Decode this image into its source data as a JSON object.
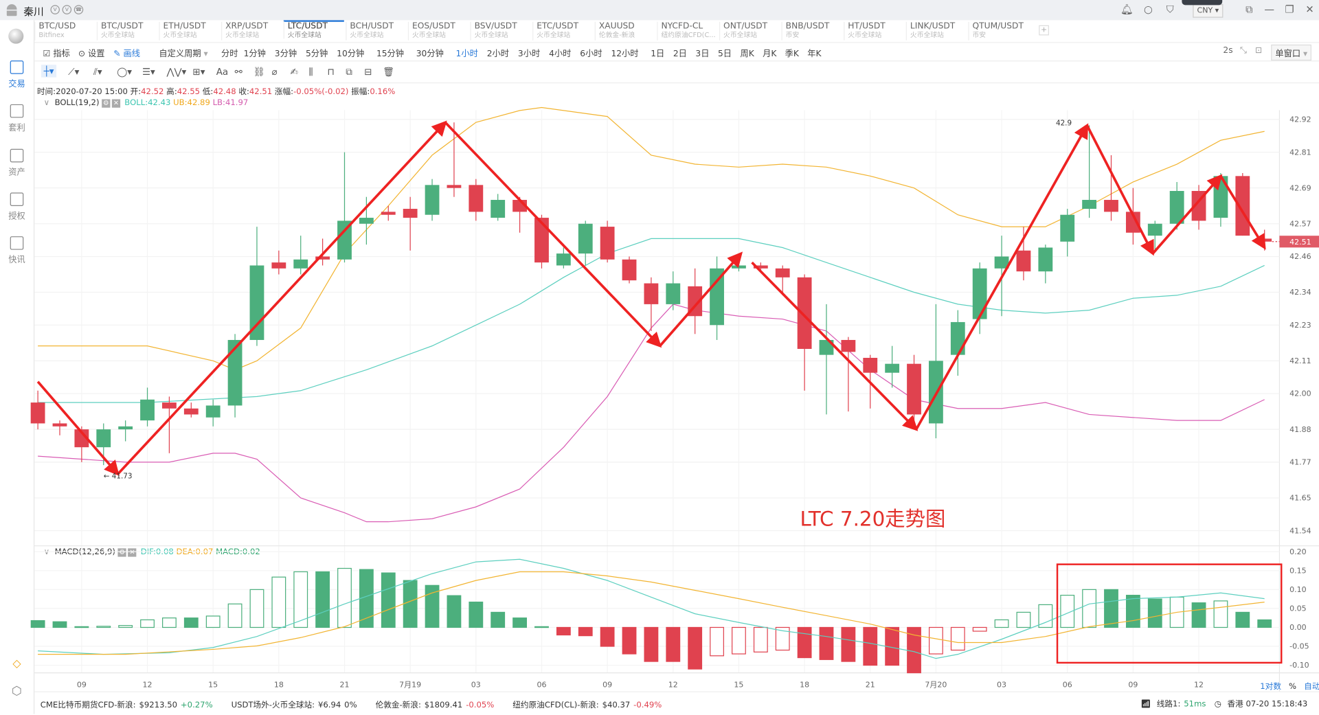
{
  "titlebar": {
    "user": "秦川",
    "currency": "CNY"
  },
  "sidebar": {
    "items": [
      {
        "label": "交易",
        "active": true
      },
      {
        "label": "套利"
      },
      {
        "label": "资产"
      },
      {
        "label": "授权"
      },
      {
        "label": "快讯"
      }
    ]
  },
  "tabs": [
    {
      "name": "BTC/USD",
      "sub": "Bitfinex"
    },
    {
      "name": "BTC/USDT",
      "sub": "火币全球站"
    },
    {
      "name": "ETH/USDT",
      "sub": "火币全球站"
    },
    {
      "name": "XRP/USDT",
      "sub": "火币全球站"
    },
    {
      "name": "LTC/USDT",
      "sub": "火币全球站",
      "active": true
    },
    {
      "name": "BCH/USDT",
      "sub": "火币全球站"
    },
    {
      "name": "EOS/USDT",
      "sub": "火币全球站"
    },
    {
      "name": "BSV/USDT",
      "sub": "火币全球站"
    },
    {
      "name": "ETC/USDT",
      "sub": "火币全球站"
    },
    {
      "name": "XAUUSD",
      "sub": "伦敦金-新浪"
    },
    {
      "name": "NYCFD-CL",
      "sub": "纽约原油CFD(C..."
    },
    {
      "name": "ONT/USDT",
      "sub": "火币全球站"
    },
    {
      "name": "BNB/USDT",
      "sub": "币安"
    },
    {
      "name": "HT/USDT",
      "sub": "火币全球站"
    },
    {
      "name": "LINK/USDT",
      "sub": "火币全球站"
    },
    {
      "name": "QTUM/USDT",
      "sub": "币安"
    }
  ],
  "toolbar": {
    "indicator": "指标",
    "settings": "设置",
    "draw": "画线",
    "custom_period": "自定义周期",
    "periods": [
      "分时",
      "1分钟",
      "3分钟",
      "5分钟",
      "10分钟",
      "15分钟",
      "30分钟",
      "1小时",
      "2小时",
      "3小时",
      "4小时",
      "6小时",
      "12小时",
      "1日",
      "2日",
      "3日",
      "5日",
      "周K",
      "月K",
      "季K",
      "年K"
    ],
    "active_period": "1小时",
    "refresh": "2s",
    "window_mode": "单窗口"
  },
  "info": {
    "time_label": "时间:",
    "time": "2020-07-20 15:00",
    "open_label": "开:",
    "open": "42.52",
    "high_label": "高:",
    "high": "42.55",
    "low_label": "低:",
    "low": "42.48",
    "close_label": "收:",
    "close": "42.51",
    "change_label": "涨幅:",
    "change": "-0.05%(-0.02)",
    "amp_label": "振幅:",
    "amp": "0.16%"
  },
  "boll": {
    "name": "BOLL(19,2)",
    "mid": "BOLL:42.43",
    "ub": "UB:42.89",
    "lb": "LB:41.97"
  },
  "macd": {
    "name": "MACD(12,26,9)",
    "dif": "DIF:0.08",
    "dea": "DEA:0.07",
    "macd": "MACD:0.02"
  },
  "axis_options": {
    "log": "1对数",
    "pct": "%",
    "auto": "自动"
  },
  "status": [
    {
      "label": "CME比特币期货CFD-新浪:",
      "value": "$9213.50",
      "change": "+0.27%",
      "dir": "up"
    },
    {
      "label": "USDT场外-火币全球站:",
      "value": "¥6.94",
      "change": "0%",
      "dir": "flat"
    },
    {
      "label": "伦敦金-新浪:",
      "value": "$1809.41",
      "change": "-0.05%",
      "dir": "down"
    },
    {
      "label": "纽约原油CFD(CL)-新浪:",
      "value": "$40.37",
      "change": "-0.49%",
      "dir": "down"
    }
  ],
  "connection": {
    "line": "线路1:",
    "latency": "51ms",
    "clock": "香港 07-20 15:18:43"
  },
  "colors": {
    "up": "#4caf7d",
    "down": "#e0424f",
    "mid": "#5ccfbf",
    "ub": "#f2b431",
    "lb": "#d95cb4",
    "annot": "#ee2222",
    "accent": "#2a7ad8"
  },
  "chart_data": {
    "type": "candlestick",
    "title": "LTC 7.20走势图",
    "price_ticks": [
      "42.92",
      "42.81",
      "42.69",
      "42.57",
      "42.46",
      "42.34",
      "42.23",
      "42.11",
      "42.00",
      "41.88",
      "41.77",
      "41.65",
      "41.54"
    ],
    "price_range": [
      41.54,
      42.92
    ],
    "last_price": "42.51",
    "time_ticks": [
      {
        "i": 2,
        "label": "09"
      },
      {
        "i": 5,
        "label": "12"
      },
      {
        "i": 8,
        "label": "15"
      },
      {
        "i": 11,
        "label": "18"
      },
      {
        "i": 14,
        "label": "21"
      },
      {
        "i": 17,
        "label": "7月19"
      },
      {
        "i": 20,
        "label": "03"
      },
      {
        "i": 23,
        "label": "06"
      },
      {
        "i": 26,
        "label": "09"
      },
      {
        "i": 29,
        "label": "12"
      },
      {
        "i": 32,
        "label": "15"
      },
      {
        "i": 35,
        "label": "18"
      },
      {
        "i": 38,
        "label": "21"
      },
      {
        "i": 41,
        "label": "7月20"
      },
      {
        "i": 44,
        "label": "03"
      },
      {
        "i": 47,
        "label": "06"
      },
      {
        "i": 50,
        "label": "09"
      },
      {
        "i": 53,
        "label": "12"
      }
    ],
    "candles": [
      [
        41.97,
        42.01,
        41.88,
        41.9
      ],
      [
        41.9,
        41.91,
        41.86,
        41.89
      ],
      [
        41.88,
        41.89,
        41.77,
        41.82
      ],
      [
        41.82,
        41.9,
        41.76,
        41.88
      ],
      [
        41.88,
        41.91,
        41.84,
        41.89
      ],
      [
        41.91,
        42.02,
        41.89,
        41.98
      ],
      [
        41.97,
        41.99,
        41.8,
        41.95
      ],
      [
        41.95,
        41.97,
        41.92,
        41.93
      ],
      [
        41.92,
        41.98,
        41.89,
        41.96
      ],
      [
        41.96,
        42.2,
        41.92,
        42.18
      ],
      [
        42.18,
        42.56,
        42.16,
        42.43
      ],
      [
        42.44,
        42.48,
        42.4,
        42.42
      ],
      [
        42.42,
        42.53,
        42.4,
        42.45
      ],
      [
        42.46,
        42.52,
        42.43,
        42.45
      ],
      [
        42.45,
        42.81,
        42.44,
        42.58
      ],
      [
        42.57,
        42.66,
        42.5,
        42.59
      ],
      [
        42.61,
        42.63,
        42.58,
        42.6
      ],
      [
        42.62,
        42.66,
        42.48,
        42.59
      ],
      [
        42.6,
        42.72,
        42.58,
        42.7
      ],
      [
        42.7,
        42.91,
        42.66,
        42.69
      ],
      [
        42.7,
        42.72,
        42.58,
        42.61
      ],
      [
        42.59,
        42.67,
        42.58,
        42.65
      ],
      [
        42.65,
        42.66,
        42.54,
        42.61
      ],
      [
        42.59,
        42.6,
        42.42,
        42.44
      ],
      [
        42.43,
        42.49,
        42.42,
        42.47
      ],
      [
        42.47,
        42.58,
        42.43,
        42.57
      ],
      [
        42.56,
        42.58,
        42.44,
        42.45
      ],
      [
        42.45,
        42.46,
        42.37,
        42.38
      ],
      [
        42.37,
        42.39,
        42.21,
        42.3
      ],
      [
        42.3,
        42.41,
        42.28,
        42.37
      ],
      [
        42.36,
        42.42,
        42.2,
        42.26
      ],
      [
        42.23,
        42.46,
        42.18,
        42.42
      ],
      [
        42.42,
        42.45,
        42.41,
        42.43
      ],
      [
        42.43,
        42.44,
        42.41,
        42.42
      ],
      [
        42.42,
        42.43,
        42.33,
        42.39
      ],
      [
        42.39,
        42.4,
        42.01,
        42.15
      ],
      [
        42.13,
        42.3,
        41.93,
        42.18
      ],
      [
        42.18,
        42.19,
        41.94,
        42.14
      ],
      [
        42.12,
        42.13,
        41.95,
        42.07
      ],
      [
        42.07,
        42.16,
        42.02,
        42.1
      ],
      [
        42.1,
        42.13,
        41.9,
        41.93
      ],
      [
        41.9,
        42.3,
        41.85,
        42.11
      ],
      [
        42.13,
        42.28,
        42.06,
        42.24
      ],
      [
        42.25,
        42.44,
        42.2,
        42.42
      ],
      [
        42.42,
        42.53,
        42.26,
        42.46
      ],
      [
        42.48,
        42.56,
        42.38,
        42.41
      ],
      [
        42.41,
        42.5,
        42.37,
        42.49
      ],
      [
        42.51,
        42.62,
        42.46,
        42.6
      ],
      [
        42.62,
        42.9,
        42.59,
        42.65
      ],
      [
        42.65,
        42.8,
        42.58,
        42.61
      ],
      [
        42.61,
        42.69,
        42.5,
        42.54
      ],
      [
        42.53,
        42.58,
        42.48,
        42.57
      ],
      [
        42.57,
        42.71,
        42.55,
        42.68
      ],
      [
        42.68,
        42.7,
        42.55,
        42.58
      ],
      [
        42.59,
        42.74,
        42.56,
        42.73
      ],
      [
        42.73,
        42.74,
        42.53,
        42.53
      ],
      [
        42.52,
        42.55,
        42.48,
        42.51
      ]
    ],
    "boll_mid": {
      "i": [
        0,
        5,
        10,
        12,
        15,
        18,
        20,
        22,
        24,
        26,
        28,
        30,
        32,
        34,
        36,
        38,
        40,
        42,
        44,
        46,
        48,
        50,
        52,
        54,
        56
      ],
      "v": [
        41.97,
        41.97,
        41.99,
        42.01,
        42.08,
        42.16,
        42.23,
        42.3,
        42.39,
        42.47,
        42.52,
        42.52,
        42.52,
        42.49,
        42.44,
        42.39,
        42.34,
        42.3,
        42.28,
        42.27,
        42.28,
        42.32,
        42.33,
        42.36,
        42.43
      ]
    },
    "boll_ub": {
      "i": [
        0,
        5,
        8,
        9,
        10,
        12,
        14,
        16,
        18,
        20,
        22,
        23,
        24,
        26,
        28,
        30,
        32,
        34,
        36,
        38,
        40,
        42,
        44,
        46,
        48,
        50,
        52,
        54,
        56
      ],
      "v": [
        42.16,
        42.16,
        42.11,
        42.08,
        42.11,
        42.22,
        42.47,
        42.63,
        42.8,
        42.91,
        42.95,
        42.96,
        42.95,
        42.93,
        42.8,
        42.77,
        42.76,
        42.77,
        42.76,
        42.73,
        42.69,
        42.6,
        42.56,
        42.56,
        42.63,
        42.71,
        42.77,
        42.85,
        42.88
      ]
    },
    "boll_lb": {
      "i": [
        0,
        4,
        6,
        8,
        9,
        10,
        12,
        14,
        15,
        16,
        18,
        20,
        22,
        24,
        26,
        28,
        29,
        30,
        32,
        34,
        36,
        38,
        40,
        42,
        44,
        46,
        48,
        50,
        52,
        54,
        56
      ],
      "v": [
        41.79,
        41.77,
        41.77,
        41.8,
        41.8,
        41.78,
        41.65,
        41.6,
        41.57,
        41.57,
        41.58,
        41.62,
        41.68,
        41.82,
        41.99,
        42.22,
        42.3,
        42.28,
        42.26,
        42.25,
        42.21,
        42.08,
        41.98,
        41.95,
        41.95,
        41.97,
        41.93,
        41.92,
        41.91,
        41.91,
        41.98
      ]
    },
    "macd_ticks": [
      "0.20",
      "0.15",
      "0.10",
      "0.05",
      "0.00",
      "-0.05",
      "-0.10"
    ],
    "macd_hist": [
      0.018,
      0.015,
      0.002,
      0.003,
      0.005,
      0.02,
      0.025,
      0.025,
      0.03,
      0.062,
      0.1,
      0.133,
      0.147,
      0.147,
      0.156,
      0.153,
      0.144,
      0.124,
      0.111,
      0.084,
      0.067,
      0.04,
      0.025,
      0.002,
      -0.02,
      -0.022,
      -0.05,
      -0.07,
      -0.09,
      -0.09,
      -0.11,
      -0.075,
      -0.07,
      -0.065,
      -0.06,
      -0.08,
      -0.085,
      -0.09,
      -0.1,
      -0.1,
      -0.12,
      -0.07,
      -0.06,
      -0.01,
      0.02,
      0.04,
      0.06,
      0.085,
      0.1,
      0.1,
      0.085,
      0.075,
      0.08,
      0.065,
      0.07,
      0.04,
      0.02
    ],
    "dif": {
      "i": [
        0,
        3,
        6,
        8,
        10,
        12,
        14,
        16,
        18,
        20,
        22,
        24,
        26,
        28,
        30,
        32,
        34,
        36,
        38,
        40,
        41,
        42,
        44,
        46,
        48,
        50,
        52,
        54,
        56
      ],
      "v": [
        -0.062,
        -0.071,
        -0.067,
        -0.053,
        -0.024,
        0.018,
        0.062,
        0.102,
        0.142,
        0.173,
        0.18,
        0.156,
        0.124,
        0.08,
        0.036,
        0.013,
        -0.009,
        -0.024,
        -0.042,
        -0.064,
        -0.082,
        -0.071,
        -0.031,
        0.013,
        0.062,
        0.076,
        0.08,
        0.091,
        0.076
      ]
    },
    "dea": {
      "i": [
        0,
        4,
        8,
        10,
        12,
        14,
        16,
        18,
        20,
        22,
        24,
        26,
        28,
        30,
        32,
        34,
        36,
        38,
        40,
        42,
        44,
        46,
        48,
        50,
        52,
        54,
        56
      ],
      "v": [
        -0.071,
        -0.071,
        -0.058,
        -0.049,
        -0.027,
        0.002,
        0.047,
        0.091,
        0.124,
        0.147,
        0.147,
        0.136,
        0.12,
        0.098,
        0.076,
        0.053,
        0.031,
        0.009,
        -0.02,
        -0.04,
        -0.04,
        -0.024,
        0.002,
        0.018,
        0.04,
        0.053,
        0.067
      ]
    },
    "annotation_points": [
      [
        0,
        42.04
      ],
      [
        3.65,
        41.73
      ],
      [
        18.6,
        42.91
      ],
      [
        28.4,
        42.16
      ],
      [
        32.1,
        42.47
      ],
      [
        32.6,
        42.44
      ],
      [
        40.1,
        41.88
      ],
      [
        47.9,
        42.9
      ],
      [
        50.9,
        42.47
      ],
      [
        54.0,
        42.73
      ],
      [
        56.0,
        42.49
      ]
    ],
    "annotation_segments": [
      [
        0,
        1
      ],
      [
        1,
        2
      ],
      [
        2,
        3
      ],
      [
        3,
        4
      ],
      [
        5,
        6
      ],
      [
        6,
        7
      ],
      [
        7,
        8
      ],
      [
        8,
        9
      ],
      [
        9,
        10
      ]
    ],
    "marker_labels": [
      {
        "i": 47.2,
        "p": 42.9,
        "text": "42.9"
      },
      {
        "i": 3.0,
        "p": 41.73,
        "text": "← 41.73"
      }
    ],
    "highlight_box": {
      "from_i": 47,
      "to_i": 57
    }
  }
}
